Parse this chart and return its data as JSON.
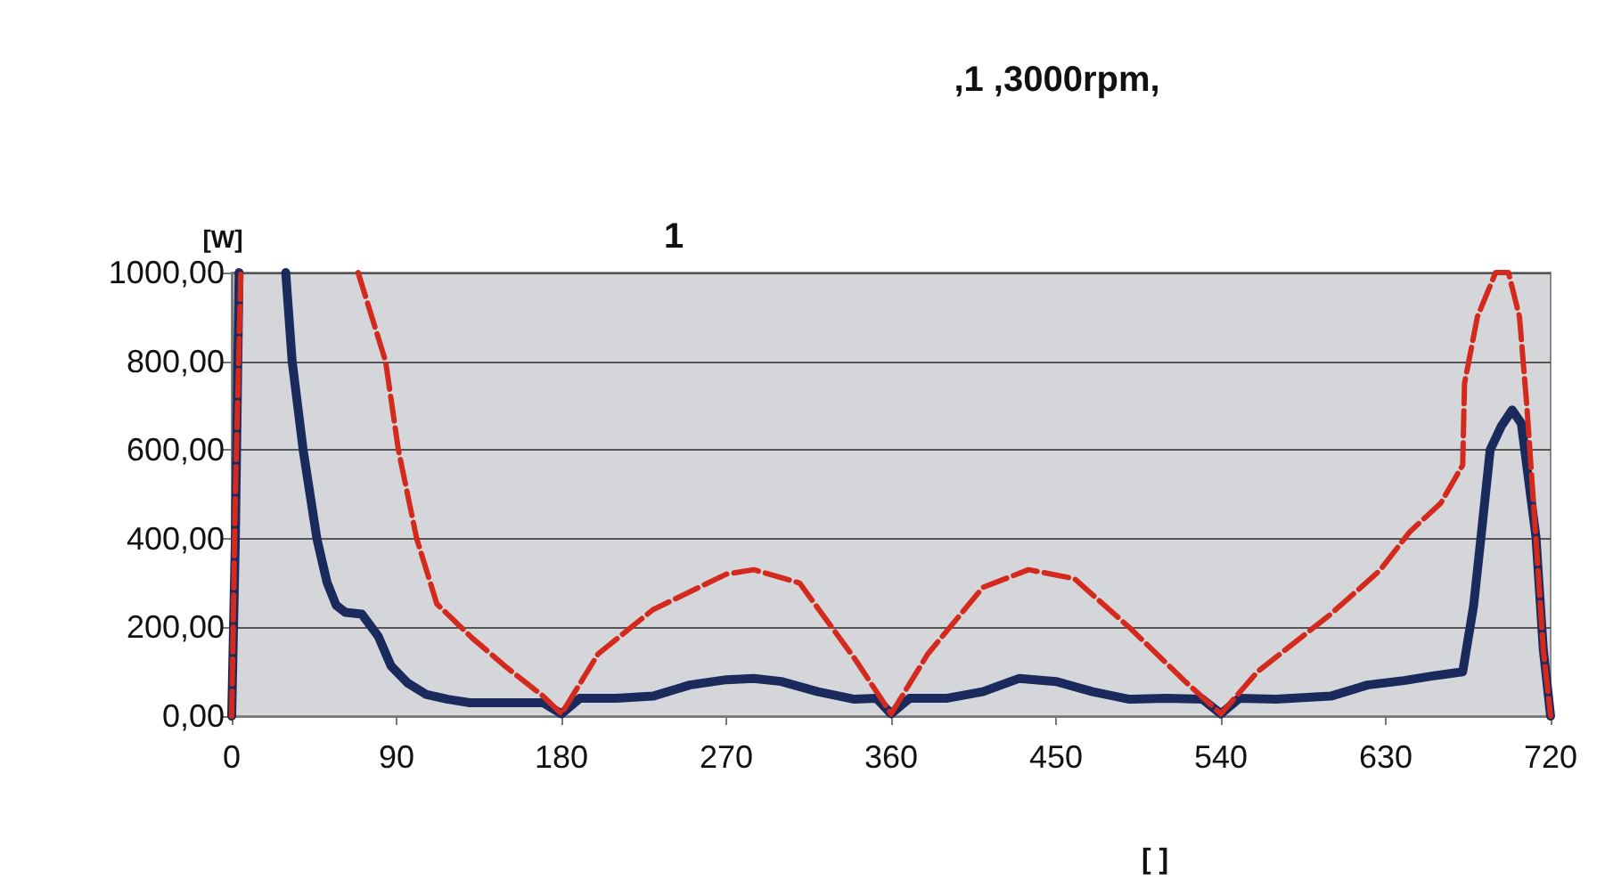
{
  "chart_data": {
    "type": "line",
    "title": ",1 ,3000rpm,",
    "subtitle": "1",
    "ylabel": "[W]",
    "xlabel": "[ ]",
    "xlim": [
      0,
      720
    ],
    "xticks": [
      0,
      90,
      180,
      270,
      360,
      450,
      540,
      630,
      720
    ],
    "ylim": [
      0,
      1000
    ],
    "yticks": [
      {
        "value": 0,
        "label": "0,00"
      },
      {
        "value": 200,
        "label": "200,00"
      },
      {
        "value": 400,
        "label": "400,00"
      },
      {
        "value": 600,
        "label": "600,00"
      },
      {
        "value": 800,
        "label": "800,00"
      },
      {
        "value": 1000,
        "label": "1000,00"
      }
    ],
    "grid": "y",
    "marker": "none",
    "series": [
      {
        "color": "#1b2a5c",
        "line_style": "solid",
        "x": [
          0,
          2,
          4,
          15,
          29.5,
          33,
          39,
          46.5,
          52,
          57,
          62,
          71,
          80,
          87,
          96,
          106,
          118,
          130,
          150,
          170,
          180,
          190,
          210,
          230,
          250,
          270,
          285,
          300,
          320,
          340,
          352,
          360,
          370,
          390,
          410,
          430,
          450,
          470,
          490,
          510,
          530,
          540,
          550,
          570,
          600,
          620,
          640,
          655,
          672,
          678,
          682,
          687,
          693,
          699,
          704,
          712,
          716,
          720
        ],
        "values": [
          0,
          400,
          1000,
          null,
          1000,
          800,
          600,
          400,
          302,
          250,
          234,
          230,
          180,
          113,
          75,
          49,
          38,
          30,
          30,
          30,
          5,
          40,
          40,
          45,
          70,
          82,
          85,
          78,
          55,
          38,
          40,
          5,
          40,
          40,
          55,
          85,
          78,
          55,
          38,
          40,
          38,
          5,
          40,
          38,
          45,
          70,
          80,
          90,
          100,
          250,
          404,
          600,
          653,
          690,
          660,
          404,
          150,
          0
        ]
      },
      {
        "color": "#d42a1e",
        "line_style": "dashed",
        "x": [
          0,
          2,
          5,
          30,
          69,
          84,
          91,
          101,
          112,
          131,
          150,
          170,
          180,
          200,
          230,
          270,
          285,
          310,
          340,
          360,
          380,
          410,
          435,
          460,
          490,
          520,
          540,
          560,
          600,
          626.7,
          643,
          660,
          672,
          673,
          680,
          690,
          697,
          703,
          707,
          712,
          716,
          720
        ],
        "values": [
          0,
          500,
          1000,
          null,
          1000,
          800,
          600,
          400,
          253,
          177,
          110,
          45,
          5,
          140,
          240,
          320,
          330,
          300,
          130,
          5,
          140,
          290,
          330,
          310,
          200,
          80,
          5,
          100,
          230,
          328,
          415,
          480,
          566,
          750,
          900,
          1000,
          1000,
          900,
          700,
          400,
          150,
          0
        ]
      }
    ]
  }
}
